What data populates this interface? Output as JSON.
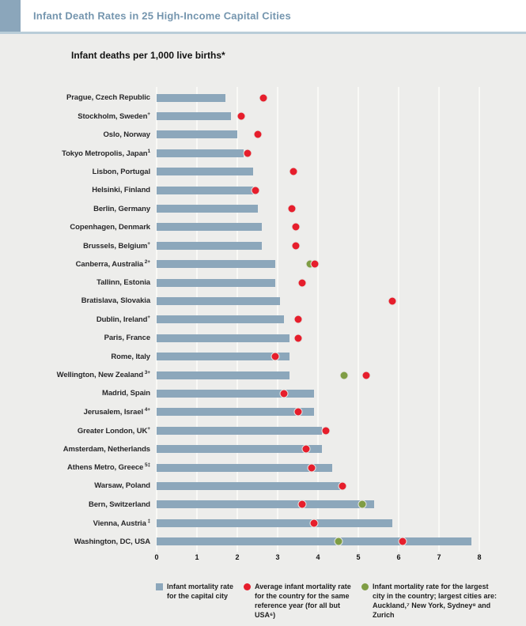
{
  "chart_data": {
    "type": "bar",
    "orientation": "horizontal",
    "title": "Infant Death Rates in 25 High-Income Capital Cities",
    "subtitle": "Infant deaths per 1,000 live births*",
    "xlim": [
      0,
      8
    ],
    "x_ticks": [
      "0",
      "1",
      "2",
      "3",
      "4",
      "5",
      "6",
      "7",
      "8"
    ],
    "grid": true,
    "colors": {
      "capital_city_bar": "#8ca7bb",
      "country_average_dot": "#e61e2c",
      "largest_city_dot": "#7f9d44",
      "panel_background": "#ededeb",
      "header_accent": "#8ba6bb",
      "title_text": "#7495ae"
    },
    "rows": [
      {
        "label": "Prague, Czech Republic",
        "sup": "",
        "bar": 1.7,
        "country": 2.65,
        "city": null
      },
      {
        "label": "Stockholm, Sweden",
        "sup": "+",
        "bar": 1.85,
        "country": 2.1,
        "city": null
      },
      {
        "label": "Oslo, Norway",
        "sup": "",
        "bar": 2.0,
        "country": 2.5,
        "city": null
      },
      {
        "label": "Tokyo Metropolis, Japan",
        "sup": "1",
        "bar": 2.15,
        "country": 2.25,
        "city": null
      },
      {
        "label": "Lisbon, Portugal",
        "sup": "",
        "bar": 2.4,
        "country": 3.4,
        "city": null
      },
      {
        "label": "Helsinki, Finland",
        "sup": "",
        "bar": 2.4,
        "country": 2.45,
        "city": null
      },
      {
        "label": "Berlin, Germany",
        "sup": "",
        "bar": 2.5,
        "country": 3.35,
        "city": null
      },
      {
        "label": "Copenhagen, Denmark",
        "sup": "",
        "bar": 2.6,
        "country": 3.45,
        "city": null
      },
      {
        "label": "Brussels, Belgium",
        "sup": "+",
        "bar": 2.6,
        "country": 3.45,
        "city": null
      },
      {
        "label": "Canberra, Australia",
        "sup": " 2+",
        "bar": 2.95,
        "country": 3.92,
        "city": 3.8
      },
      {
        "label": "Tallinn, Estonia",
        "sup": "",
        "bar": 2.95,
        "country": 3.6,
        "city": null
      },
      {
        "label": "Bratislava, Slovakia",
        "sup": "",
        "bar": 3.05,
        "country": 5.85,
        "city": null
      },
      {
        "label": "Dublin, Ireland",
        "sup": "+",
        "bar": 3.15,
        "country": 3.5,
        "city": null
      },
      {
        "label": "Paris, France",
        "sup": "",
        "bar": 3.3,
        "country": 3.5,
        "city": null
      },
      {
        "label": "Rome, Italy",
        "sup": "",
        "bar": 3.3,
        "country": 2.95,
        "city": null
      },
      {
        "label": "Wellington, New Zealand",
        "sup": " 3+",
        "bar": 3.3,
        "country": 5.2,
        "city": 4.65
      },
      {
        "label": "Madrid, Spain",
        "sup": "",
        "bar": 3.9,
        "country": 3.15,
        "city": null
      },
      {
        "label": "Jerusalem, Israel",
        "sup": " 4+",
        "bar": 3.9,
        "country": 3.5,
        "city": null
      },
      {
        "label": "Greater London, UK",
        "sup": "+",
        "bar": 4.1,
        "country": 4.2,
        "city": null
      },
      {
        "label": "Amsterdam, Netherlands",
        "sup": "",
        "bar": 4.1,
        "country": 3.7,
        "city": null
      },
      {
        "label": "Athens Metro, Greece",
        "sup": " 5‡",
        "bar": 4.35,
        "country": 3.85,
        "city": null
      },
      {
        "label": "Warsaw, Poland",
        "sup": "",
        "bar": 4.55,
        "country": 4.6,
        "city": null
      },
      {
        "label": "Bern, Switzerland",
        "sup": "",
        "bar": 5.4,
        "country": 3.6,
        "city": 5.1
      },
      {
        "label": "Vienna, Austria",
        "sup": " ‡",
        "bar": 5.85,
        "country": 3.9,
        "city": null
      },
      {
        "label": "Washington, DC, USA",
        "sup": "",
        "bar": 7.8,
        "country": 6.1,
        "city": 4.5
      }
    ],
    "legend": [
      {
        "key": "capital-city",
        "marker": "square",
        "color": "#8ca7bb",
        "text": "Infant mortality rate for the capital city"
      },
      {
        "key": "country-average",
        "marker": "circle",
        "color": "#e61e2c",
        "text": "Average infant mortality rate for the country for the same reference year (for all but USA⁶)"
      },
      {
        "key": "largest-city",
        "marker": "circle",
        "color": "#7f9d44",
        "text": "Infant mortality rate for the largest city in the country; largest cities are: Auckland,⁷ New York, Sydney⁸ and Zurich"
      }
    ]
  }
}
